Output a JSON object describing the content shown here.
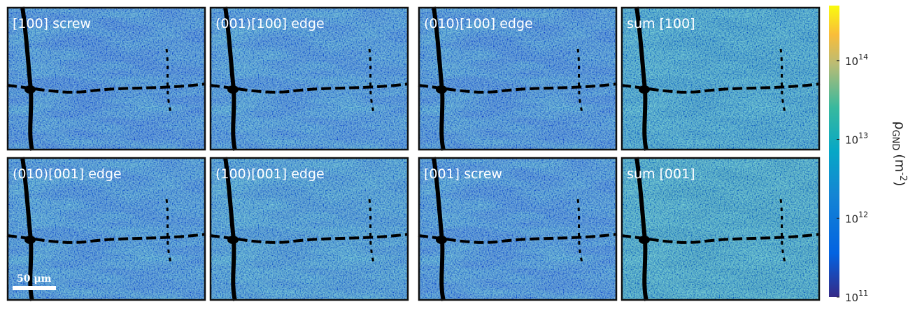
{
  "panels": [
    {
      "label": "[100] screw"
    },
    {
      "label": "(001)[100] edge"
    },
    {
      "label": "(010)[100] edge"
    },
    {
      "label": "sum [100]"
    },
    {
      "label": "(010)[001] edge"
    },
    {
      "label": "(100)[001] edge"
    },
    {
      "label": "[001] screw"
    },
    {
      "label": "sum [001]"
    }
  ],
  "scale_bar": "50 μm",
  "colorbar": {
    "log_scale": true,
    "lim": [
      100000000000,
      500000000000000
    ],
    "ticks": [
      {
        "value": 100000000000,
        "base": "10",
        "exponent": "11"
      },
      {
        "value": 1000000000000,
        "base": "10",
        "exponent": "12"
      },
      {
        "value": 10000000000000,
        "base": "10",
        "exponent": "13"
      },
      {
        "value": 100000000000000,
        "base": "10",
        "exponent": "14"
      }
    ],
    "label": {
      "symbol": "ρ",
      "subscript": "GND",
      "unit_open": "(m",
      "superscript": "-2",
      "unit_close": ")"
    }
  }
}
